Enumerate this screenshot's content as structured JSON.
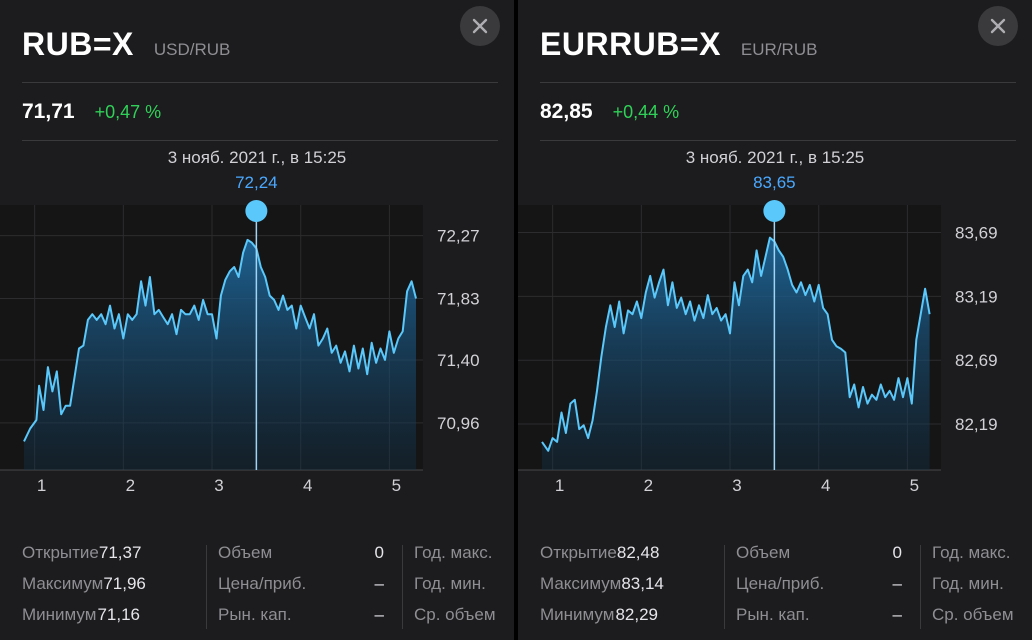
{
  "panels": [
    {
      "symbol": "RUB=X",
      "pair": "USD/RUB",
      "price": "71,71",
      "change": "+0,47 %",
      "selection": {
        "date": "3 нояб. 2021 г., в 15:25",
        "value": "72,24"
      },
      "stats": {
        "col1": [
          {
            "label": "Открытие",
            "value": "71,37"
          },
          {
            "label": "Максимум",
            "value": "71,96"
          },
          {
            "label": "Минимум",
            "value": "71,16"
          }
        ],
        "col2": [
          {
            "label": "Объем",
            "value": "0"
          },
          {
            "label": "Цена/приб.",
            "value": "–"
          },
          {
            "label": "Рын. кап.",
            "value": "–"
          }
        ],
        "col3": [
          {
            "label": "Год. макс."
          },
          {
            "label": "Год. мин."
          },
          {
            "label": "Ср. объем"
          }
        ]
      }
    },
    {
      "symbol": "EURRUB=X",
      "pair": "EUR/RUB",
      "price": "82,85",
      "change": "+0,44 %",
      "selection": {
        "date": "3 нояб. 2021 г., в 15:25",
        "value": "83,65"
      },
      "stats": {
        "col1": [
          {
            "label": "Открытие",
            "value": "82,48"
          },
          {
            "label": "Максимум",
            "value": "83,14"
          },
          {
            "label": "Минимум",
            "value": "82,29"
          }
        ],
        "col2": [
          {
            "label": "Объем",
            "value": "0"
          },
          {
            "label": "Цена/приб.",
            "value": "–"
          },
          {
            "label": "Рын. кап.",
            "value": "–"
          }
        ],
        "col3": [
          {
            "label": "Год. макс."
          },
          {
            "label": "Год. мин."
          },
          {
            "label": "Ср. объем"
          }
        ]
      }
    }
  ],
  "chart_data": [
    {
      "type": "area",
      "x_ticks": [
        "1",
        "2",
        "3",
        "4",
        "5"
      ],
      "y_ticks": [
        "72,27",
        "71,83",
        "71,40",
        "70,96"
      ],
      "y_tick_values": [
        72.27,
        71.83,
        71.4,
        70.96
      ],
      "ylim": [
        70.63,
        72.47
      ],
      "xlim": [
        0.88,
        5.3
      ],
      "selected": {
        "x": 3.5,
        "y": 72.24
      },
      "line_color": "#5ac8fa",
      "x": [
        0.88,
        0.95,
        1.02,
        1.05,
        1.1,
        1.15,
        1.2,
        1.25,
        1.3,
        1.35,
        1.4,
        1.5,
        1.55,
        1.6,
        1.65,
        1.7,
        1.75,
        1.8,
        1.85,
        1.9,
        1.95,
        2.0,
        2.05,
        2.1,
        2.15,
        2.2,
        2.25,
        2.3,
        2.35,
        2.4,
        2.45,
        2.5,
        2.55,
        2.6,
        2.65,
        2.7,
        2.75,
        2.8,
        2.85,
        2.9,
        2.95,
        3.0,
        3.05,
        3.1,
        3.15,
        3.2,
        3.25,
        3.3,
        3.35,
        3.4,
        3.45,
        3.5,
        3.55,
        3.6,
        3.65,
        3.7,
        3.75,
        3.8,
        3.85,
        3.9,
        3.95,
        4.0,
        4.05,
        4.1,
        4.15,
        4.2,
        4.25,
        4.3,
        4.35,
        4.4,
        4.45,
        4.5,
        4.55,
        4.6,
        4.65,
        4.7,
        4.75,
        4.8,
        4.85,
        4.9,
        4.95,
        5.0,
        5.05,
        5.1,
        5.15,
        5.2,
        5.25,
        5.3
      ],
      "y": [
        70.83,
        70.92,
        70.98,
        71.22,
        71.05,
        71.35,
        71.18,
        71.32,
        71.02,
        71.08,
        71.08,
        71.48,
        71.5,
        71.68,
        71.72,
        71.68,
        71.72,
        71.65,
        71.78,
        71.62,
        71.72,
        71.55,
        71.72,
        71.68,
        71.72,
        71.95,
        71.78,
        71.98,
        71.72,
        71.75,
        71.7,
        71.65,
        71.72,
        71.58,
        71.75,
        71.72,
        71.72,
        71.78,
        71.68,
        71.82,
        71.72,
        71.72,
        71.55,
        71.85,
        71.96,
        72.02,
        72.05,
        71.98,
        72.15,
        72.24,
        72.22,
        72.18,
        72.05,
        71.98,
        71.85,
        71.82,
        71.75,
        71.85,
        71.75,
        71.78,
        71.62,
        71.78,
        71.7,
        71.62,
        71.72,
        71.5,
        71.55,
        71.62,
        71.45,
        71.5,
        71.38,
        71.46,
        71.32,
        71.5,
        71.34,
        71.48,
        71.3,
        71.52,
        71.38,
        71.48,
        71.4,
        71.6,
        71.45,
        71.55,
        71.6,
        71.88,
        71.95,
        71.83
      ]
    },
    {
      "type": "area",
      "x_ticks": [
        "1",
        "2",
        "3",
        "4",
        "5"
      ],
      "y_ticks": [
        "83,69",
        "83,19",
        "82,69",
        "82,19"
      ],
      "y_tick_values": [
        83.69,
        83.19,
        82.69,
        82.19
      ],
      "ylim": [
        81.83,
        83.89
      ],
      "xlim": [
        0.88,
        5.3
      ],
      "selected": {
        "x": 3.5,
        "y": 83.65
      },
      "line_color": "#5ac8fa",
      "x": [
        0.88,
        0.95,
        1.0,
        1.05,
        1.1,
        1.15,
        1.2,
        1.25,
        1.3,
        1.35,
        1.4,
        1.45,
        1.5,
        1.55,
        1.6,
        1.65,
        1.7,
        1.75,
        1.8,
        1.85,
        1.9,
        1.95,
        2.0,
        2.05,
        2.1,
        2.15,
        2.2,
        2.25,
        2.3,
        2.35,
        2.4,
        2.45,
        2.5,
        2.55,
        2.6,
        2.65,
        2.7,
        2.75,
        2.8,
        2.85,
        2.9,
        2.95,
        3.0,
        3.05,
        3.1,
        3.15,
        3.2,
        3.25,
        3.3,
        3.35,
        3.4,
        3.45,
        3.5,
        3.55,
        3.6,
        3.65,
        3.7,
        3.75,
        3.8,
        3.85,
        3.9,
        3.95,
        4.0,
        4.05,
        4.1,
        4.15,
        4.2,
        4.25,
        4.3,
        4.35,
        4.4,
        4.45,
        4.5,
        4.55,
        4.6,
        4.65,
        4.7,
        4.75,
        4.8,
        4.85,
        4.9,
        4.95,
        5.0,
        5.05,
        5.1,
        5.15,
        5.2,
        5.25
      ],
      "y": [
        82.05,
        81.98,
        82.08,
        82.05,
        82.28,
        82.12,
        82.35,
        82.38,
        82.15,
        82.18,
        82.08,
        82.22,
        82.45,
        82.72,
        82.95,
        83.12,
        82.95,
        83.15,
        82.9,
        83.08,
        83.05,
        83.15,
        83.02,
        83.22,
        83.35,
        83.18,
        83.3,
        83.4,
        83.12,
        83.3,
        83.1,
        83.18,
        83.05,
        83.15,
        83.0,
        83.12,
        83.02,
        83.2,
        83.05,
        83.1,
        83.0,
        83.05,
        82.9,
        83.3,
        83.12,
        83.35,
        83.4,
        83.3,
        83.55,
        83.35,
        83.5,
        83.65,
        83.62,
        83.55,
        83.5,
        83.4,
        83.28,
        83.22,
        83.3,
        83.2,
        83.28,
        83.15,
        83.28,
        83.1,
        83.05,
        82.85,
        82.8,
        82.78,
        82.75,
        82.4,
        82.5,
        82.32,
        82.48,
        82.35,
        82.42,
        82.38,
        82.5,
        82.4,
        82.45,
        82.38,
        82.55,
        82.4,
        82.55,
        82.35,
        82.85,
        83.05,
        83.25,
        83.05
      ]
    }
  ]
}
